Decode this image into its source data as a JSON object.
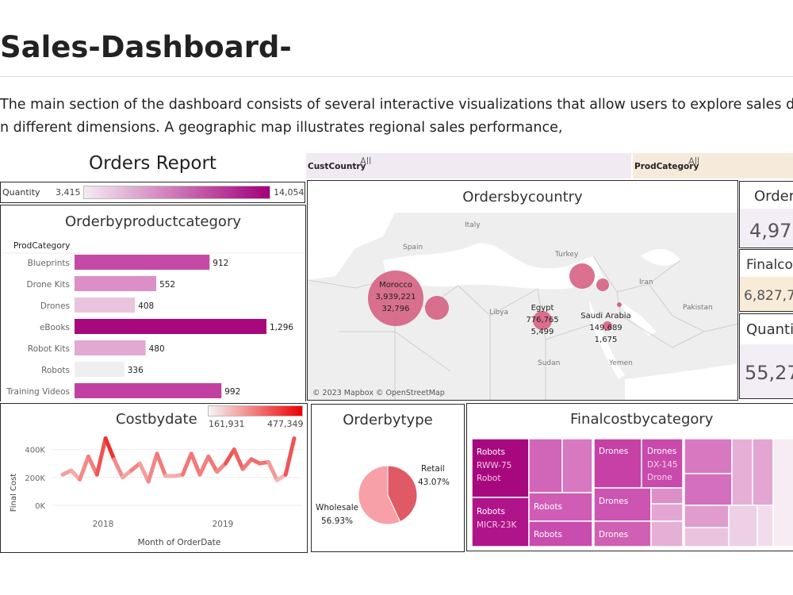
{
  "page": {
    "title": "Sales-Dashboard-",
    "description_line1": "The main section of the dashboard consists of several interactive visualizations that allow users to explore sales da",
    "description_line2": "n different dimensions. A geographic map illustrates regional sales performance,"
  },
  "orders_report": {
    "title": "Orders Report"
  },
  "quantity_legend": {
    "label": "Quantity",
    "min": "3,415",
    "max": "14,054",
    "color_low": "#f3e4f0",
    "color_high": "#a3007a"
  },
  "filters": {
    "cust_country": {
      "label": "CustCountry",
      "value": "All"
    },
    "prod_category": {
      "label": "ProdCategory",
      "value": "All"
    }
  },
  "orders_by_product_category": {
    "title": "Orderbyproductcategory",
    "axis_header": "ProdCategory",
    "chart_data": {
      "type": "bar",
      "orientation": "horizontal",
      "categories": [
        "Blueprints",
        "Drone Kits",
        "Drones",
        "eBooks",
        "Robot Kits",
        "Robots",
        "Training Videos"
      ],
      "values": [
        912,
        552,
        408,
        1296,
        480,
        336,
        992
      ],
      "value_labels": [
        "912",
        "552",
        "408",
        "1,296",
        "480",
        "336",
        "992"
      ],
      "colors": [
        "#c54aa6",
        "#dc8fc7",
        "#eac3df",
        "#a8087d",
        "#e2a9d2",
        "#efefef",
        "#c23fa2"
      ]
    }
  },
  "orders_by_country": {
    "title": "Ordersbycountry",
    "attribution": "© 2023 Mapbox © OpenStreetMap",
    "map_labels": {
      "spain": "Spain",
      "italy": "Italy",
      "turkey": "Turkey",
      "iran": "Iran",
      "libya": "Libya",
      "sudan": "Sudan",
      "yemen": "Yemen",
      "pakistan": "Pakistan"
    },
    "points": [
      {
        "name": "Morocco",
        "line2": "3,939,221",
        "line3": "32,796"
      },
      {
        "name": "Egypt",
        "line2": "776,765",
        "line3": "5,499"
      },
      {
        "name": "Saudi Arabia",
        "line2": "149,689",
        "line3": "1,675"
      }
    ],
    "bubble_color": "#d4587a"
  },
  "kpis": {
    "orders": {
      "label": "Order",
      "value": "4,97"
    },
    "finalcost": {
      "label": "Finalco",
      "value": "6,827,7"
    },
    "quantity": {
      "label": "Quanti",
      "value": "55,27"
    }
  },
  "cost_by_date": {
    "title": "Costbydate",
    "legend_min": "161,931",
    "legend_max": "477,349",
    "ylabel": "Final Cost",
    "xlabel": "Month of OrderDate",
    "chart_data": {
      "type": "line",
      "y_ticks": [
        "400K",
        "200K",
        "0K"
      ],
      "x_ticks": [
        "2018",
        "2019"
      ],
      "ylim": [
        0,
        500000
      ],
      "values": [
        220000,
        250000,
        185000,
        350000,
        220000,
        480000,
        330000,
        200000,
        250000,
        300000,
        170000,
        370000,
        210000,
        210000,
        220000,
        370000,
        220000,
        350000,
        240000,
        300000,
        400000,
        260000,
        330000,
        300000,
        310000,
        180000,
        220000,
        480000
      ]
    }
  },
  "order_by_type": {
    "title": "Orderbytype",
    "chart_data": {
      "type": "pie",
      "labels": [
        "Retail",
        "Wholesale"
      ],
      "values": [
        43.07,
        56.93
      ],
      "value_labels": [
        "43.07%",
        "56.93%"
      ],
      "colors": [
        "#e05a66",
        "#f8a0a8"
      ]
    }
  },
  "final_cost_by_category": {
    "title": "Finalcostbycategory",
    "tiles": [
      {
        "l1": "Robots",
        "l2": "RWW-75",
        "l3": "Robot"
      },
      {
        "l1": "Robots",
        "l2": "MICR-23K"
      },
      {
        "l1": "Robots"
      },
      {
        "l1": "Robots"
      },
      {
        "l1": "Drones",
        "l2": "DX-145",
        "l3": "Drone"
      },
      {
        "l1": "Drones"
      },
      {
        "l1": "Drones"
      }
    ]
  }
}
